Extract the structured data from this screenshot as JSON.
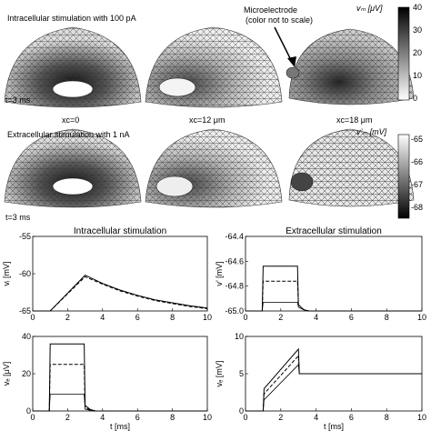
{
  "top_section": {
    "intra_title": "Intracellular stimulation with 100 pA",
    "extra_title": "Extracellular stimulation with 1 nA",
    "time_label_intra": "t=3 ms",
    "time_label_extra": "t=3 ms",
    "microelectrode_label_line1": "Microelectrode",
    "microelectrode_label_line2": "(color not to scale)",
    "positions": [
      "xᴄ=0",
      "xᴄ=12 μm",
      "xᴄ=18 μm"
    ],
    "colorbar_vm": {
      "label": "vₘ [μV]",
      "ticks": [
        "40",
        "30",
        "20",
        "10",
        "0"
      ]
    },
    "colorbar_v": {
      "label": "v’ₘ [mV]",
      "ticks": [
        "-65",
        "-66",
        "-67",
        "-68"
      ]
    }
  },
  "chart_data": [
    {
      "type": "line",
      "title": "Intracellular stimulation",
      "xlabel": "",
      "ylabel": "vᵢ [mV]",
      "xlim": [
        0,
        10
      ],
      "ylim": [
        -65,
        -55
      ],
      "xticks": [
        "0",
        "2",
        "4",
        "6",
        "8",
        "10"
      ],
      "yticks": [
        "-55",
        "-60",
        "-65"
      ],
      "series": [
        {
          "x": [
            0,
            1,
            2,
            3,
            4,
            5,
            6,
            7,
            8,
            9,
            10
          ],
          "y": [
            -65,
            -65,
            -62.6,
            -60.2,
            -61.3,
            -62.2,
            -62.9,
            -63.5,
            -63.9,
            -64.3,
            -64.6
          ]
        },
        {
          "x": [
            0,
            1,
            2,
            3,
            4,
            5,
            6,
            7,
            8,
            9,
            10
          ],
          "y": [
            -65,
            -65,
            -62.7,
            -60.4,
            -61.4,
            -62.3,
            -63.0,
            -63.6,
            -64.0,
            -64.4,
            -64.7
          ]
        }
      ]
    },
    {
      "type": "line",
      "title": "Extracellular stimulation",
      "xlabel": "",
      "ylabel": "v’ [mV]",
      "xlim": [
        0,
        10
      ],
      "ylim": [
        -65,
        -64.4
      ],
      "xticks": [
        "0",
        "2",
        "4",
        "6",
        "8",
        "10"
      ],
      "yticks": [
        "-64.4",
        "-64.6",
        "-64.8",
        "-65.0"
      ],
      "series": [
        {
          "x": [
            0,
            0.95,
            1.0,
            1.05,
            2.95,
            3.0,
            3.3,
            3.6,
            10
          ],
          "y": [
            -65,
            -65,
            -64.64,
            -64.64,
            -64.64,
            -64.95,
            -64.99,
            -65,
            -65
          ]
        },
        {
          "x": [
            0,
            0.95,
            1.0,
            1.05,
            2.95,
            3.0,
            3.3,
            3.6,
            10
          ],
          "y": [
            -65,
            -65,
            -64.76,
            -64.76,
            -64.76,
            -64.95,
            -64.99,
            -65,
            -65
          ]
        },
        {
          "x": [
            0,
            0.95,
            1.0,
            1.05,
            2.95,
            3.0,
            3.3,
            3.6,
            10
          ],
          "y": [
            -65,
            -65,
            -64.93,
            -64.93,
            -64.93,
            -64.97,
            -64.99,
            -65,
            -65
          ]
        }
      ]
    },
    {
      "type": "line",
      "title": "",
      "xlabel": "t [ms]",
      "ylabel": "vₑ [μV]",
      "xlim": [
        0,
        10
      ],
      "ylim": [
        0,
        40
      ],
      "xticks": [
        "0",
        "2",
        "4",
        "6",
        "8",
        "10"
      ],
      "yticks": [
        "0",
        "20",
        "40"
      ],
      "series": [
        {
          "x": [
            0,
            0.95,
            1.0,
            2.95,
            3.0,
            3.3,
            3.6,
            10
          ],
          "y": [
            0,
            0,
            36,
            36,
            3,
            0.8,
            0,
            0
          ]
        },
        {
          "x": [
            0,
            0.95,
            1.0,
            2.95,
            3.0,
            3.3,
            3.6,
            10
          ],
          "y": [
            0,
            0,
            25,
            25,
            2,
            0.5,
            0,
            0
          ]
        },
        {
          "x": [
            0,
            0.95,
            1.0,
            2.95,
            3.0,
            3.3,
            3.6,
            10
          ],
          "y": [
            0,
            0,
            9,
            9,
            1,
            0.3,
            0,
            0
          ]
        }
      ]
    },
    {
      "type": "line",
      "title": "",
      "xlabel": "t [ms]",
      "ylabel": "vₑ [mV]",
      "xlim": [
        0,
        10
      ],
      "ylim": [
        0,
        10
      ],
      "xticks": [
        "0",
        "2",
        "4",
        "6",
        "8",
        "10"
      ],
      "yticks": [
        "0",
        "5",
        "10"
      ],
      "series": [
        {
          "x": [
            0,
            1.0,
            1.05,
            3.0,
            3.05,
            10
          ],
          "y": [
            0,
            0,
            3,
            8.3,
            5,
            5
          ]
        },
        {
          "x": [
            0,
            1.0,
            1.05,
            3.0,
            3.05,
            10
          ],
          "y": [
            0,
            0,
            2.3,
            7.4,
            5,
            5
          ]
        },
        {
          "x": [
            0,
            1.0,
            1.05,
            3.0,
            3.05,
            10
          ],
          "y": [
            0,
            0,
            1.5,
            6.2,
            5,
            5
          ]
        }
      ]
    }
  ]
}
